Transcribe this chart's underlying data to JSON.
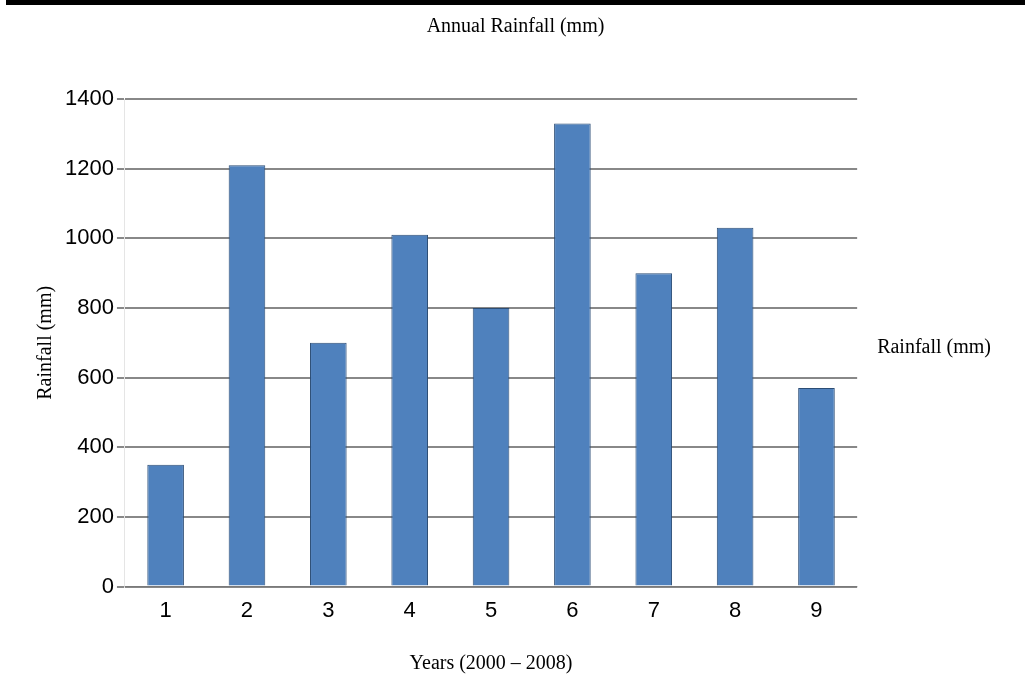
{
  "chart_data": {
    "type": "bar",
    "title": "Annual Rainfall (mm)",
    "xlabel": "Years (2000 – 2008)",
    "ylabel": "Rainfall (mm)",
    "categories": [
      "1",
      "2",
      "3",
      "4",
      "5",
      "6",
      "7",
      "8",
      "9"
    ],
    "series": [
      {
        "name": "Rainfall (mm)",
        "color": "#4f81bd",
        "values": [
          350,
          1210,
          700,
          1010,
          800,
          1330,
          900,
          1030,
          570
        ]
      }
    ],
    "ylim": [
      0,
      1400
    ],
    "yticks": [
      0,
      200,
      400,
      600,
      800,
      1000,
      1200,
      1400
    ],
    "grid": "y",
    "legend": "right"
  }
}
